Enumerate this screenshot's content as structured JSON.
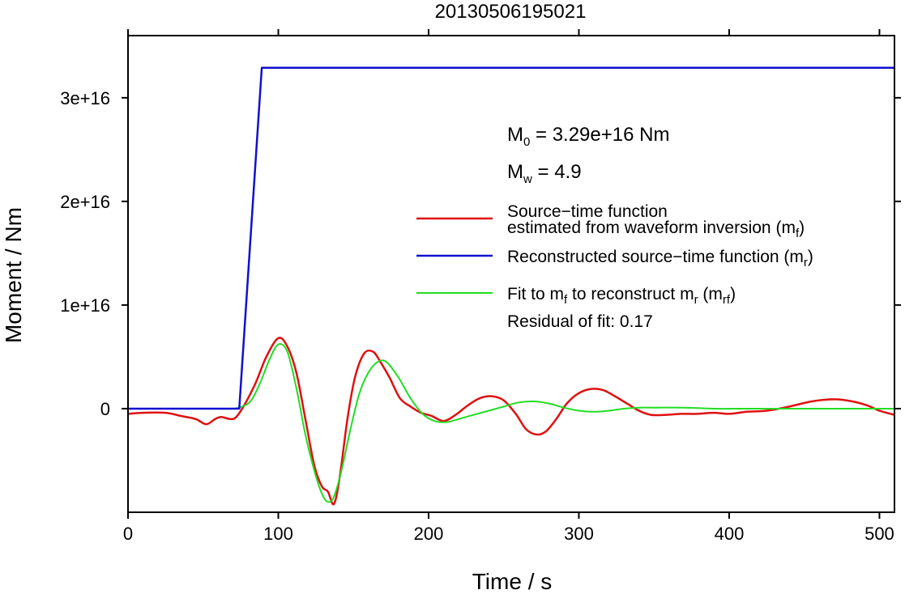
{
  "chart_data": {
    "type": "line",
    "title": "20130506195021",
    "xlabel": "Time / s",
    "ylabel": "Moment / Nm",
    "xlim": [
      0,
      510
    ],
    "ylim": [
      -1e+16,
      3.6e+16
    ],
    "x_ticks": [
      0,
      100,
      200,
      300,
      400,
      500
    ],
    "x_tick_labels": [
      "0",
      "100",
      "200",
      "300",
      "400",
      "500"
    ],
    "y_ticks": [
      0,
      1e+16,
      2e+16,
      3e+16
    ],
    "y_tick_labels": [
      "0",
      "1e+16",
      "2e+16",
      "3e+16"
    ],
    "grid": false,
    "legend_position": "right",
    "annotations": {
      "m0_main": "M",
      "m0_sub": "0",
      "m0_value": " = 3.29e+16 Nm",
      "mw_main": "M",
      "mw_sub": "w",
      "mw_value": " = 4.9",
      "residual": "Residual of fit: 0.17"
    },
    "legend": [
      {
        "line1": "Source−time function",
        "line2_main": "estimated from waveform inversion (m",
        "line2_sub": "f",
        "line2_end": ")",
        "color": "#e01010"
      },
      {
        "line1_main": "Reconstructed source−time function (m",
        "line1_sub": "r",
        "line1_end": ")",
        "color": "#1010d0"
      },
      {
        "p1": "Fit to m",
        "s1": "f",
        "p2": " to reconstruct m",
        "s2": "r",
        "p3": " (m",
        "s3": "rf",
        "p4": ")",
        "color": "#22dd22"
      }
    ],
    "series": [
      {
        "name": "Reconstructed source−time function (mr)",
        "color": "#1010d0",
        "x": [
          0,
          74,
          89,
          510
        ],
        "y": [
          0,
          0,
          3.29e+16,
          3.29e+16
        ]
      },
      {
        "name": "Source−time function estimated from waveform inversion (mf)",
        "color": "#e01010",
        "x": [
          0,
          10,
          25,
          35,
          45,
          52,
          58,
          62,
          68,
          72,
          78,
          85,
          92,
          100,
          106,
          112,
          118,
          124,
          129,
          133,
          137,
          141,
          146,
          151,
          157,
          163,
          168,
          174,
          181,
          188,
          195,
          202,
          210,
          218,
          226,
          234,
          242,
          250,
          258,
          265,
          272,
          278,
          285,
          292,
          300,
          308,
          316,
          324,
          332,
          340,
          348,
          358,
          368,
          378,
          390,
          400,
          412,
          425,
          440,
          455,
          470,
          482,
          492,
          500,
          510
        ],
        "y": [
          -500000000000000.0,
          -400000000000000.0,
          -400000000000000.0,
          -700000000000000.0,
          -1000000000000000.0,
          -1500000000000000.0,
          -1000000000000000.0,
          -800000000000000.0,
          -1000000000000000.0,
          -800000000000000.0,
          500000000000000.0,
          2500000000000000.0,
          5000000000000000.0,
          6800000000000000.0,
          6000000000000000.0,
          3500000000000000.0,
          -1000000000000000.0,
          -5500000000000000.0,
          -7500000000000000.0,
          -8000000000000000.0,
          -9200000000000000.0,
          -6500000000000000.0,
          -1000000000000000.0,
          3000000000000000.0,
          5300000000000000.0,
          5500000000000000.0,
          4500000000000000.0,
          3000000000000000.0,
          1000000000000000.0,
          200000000000000.0,
          -400000000000000.0,
          -700000000000000.0,
          -1200000000000000.0,
          -600000000000000.0,
          300000000000000.0,
          1000000000000000.0,
          1200000000000000.0,
          800000000000000.0,
          -500000000000000.0,
          -2000000000000000.0,
          -2500000000000000.0,
          -2200000000000000.0,
          -1000000000000000.0,
          500000000000000.0,
          1500000000000000.0,
          1900000000000000.0,
          1800000000000000.0,
          1200000000000000.0,
          500000000000000.0,
          -200000000000000.0,
          -600000000000000.0,
          -600000000000000.0,
          -500000000000000.0,
          -500000000000000.0,
          -400000000000000.0,
          -500000000000000.0,
          -300000000000000.0,
          -200000000000000.0,
          200000000000000.0,
          700000000000000.0,
          900000000000000.0,
          700000000000000.0,
          300000000000000.0,
          -200000000000000.0,
          -600000000000000.0
        ]
      },
      {
        "name": "Fit to mf to reconstruct mr (mrf)",
        "color": "#22dd22",
        "x": [
          0,
          40,
          60,
          70,
          76,
          82,
          88,
          94,
          100,
          106,
          112,
          118,
          124,
          129,
          133,
          137,
          142,
          148,
          154,
          160,
          166,
          172,
          180,
          188,
          196,
          204,
          212,
          220,
          230,
          240,
          250,
          260,
          270,
          280,
          290,
          300,
          310,
          320,
          330,
          340,
          350,
          370,
          390,
          410,
          440,
          470,
          500,
          510
        ],
        "y": [
          0,
          0,
          0,
          0,
          200000000000000.0,
          800000000000000.0,
          2500000000000000.0,
          4700000000000000.0,
          6200000000000000.0,
          5500000000000000.0,
          2000000000000000.0,
          -2500000000000000.0,
          -6000000000000000.0,
          -8200000000000000.0,
          -9000000000000000.0,
          -8500000000000000.0,
          -6000000000000000.0,
          -2000000000000000.0,
          1500000000000000.0,
          3500000000000000.0,
          4500000000000000.0,
          4500000000000000.0,
          3000000000000000.0,
          1000000000000000.0,
          -500000000000000.0,
          -1200000000000000.0,
          -1300000000000000.0,
          -1000000000000000.0,
          -600000000000000.0,
          -200000000000000.0,
          200000000000000.0,
          600000000000000.0,
          700000000000000.0,
          500000000000000.0,
          100000000000000.0,
          -200000000000000.0,
          -300000000000000.0,
          -200000000000000.0,
          0,
          100000000000000.0,
          100000000000000.0,
          100000000000000.0,
          0,
          0,
          0,
          0,
          0,
          0
        ]
      }
    ]
  }
}
